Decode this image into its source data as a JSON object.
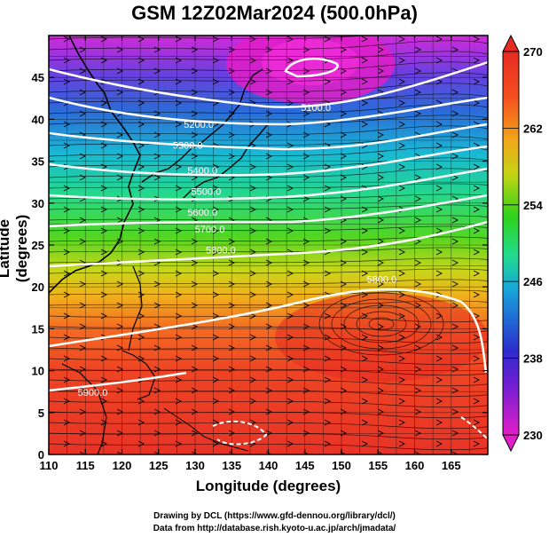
{
  "title": "GSM 12Z02Mar2024 (500.0hPa)",
  "xlabel": "Longitude (degrees)",
  "ylabel": "Latitude  (degrees)",
  "credit_line1": "Drawing by DCL (https://www.gfd-dennou.org/library/dcl/)",
  "credit_line2": "Data from http://database.rish.kyoto-u.ac.jp/arch/jmadata/",
  "map": {
    "lon_range": [
      110,
      170
    ],
    "lat_range": [
      0,
      50
    ],
    "lon_ticks": [
      110,
      115,
      120,
      125,
      130,
      135,
      140,
      145,
      150,
      155,
      160,
      165
    ],
    "lat_ticks": [
      0,
      5,
      10,
      15,
      20,
      25,
      30,
      35,
      40,
      45
    ],
    "field": "temperature (K) shaded, geopotential height contours, wind streamlines",
    "colorbar": {
      "min": 230,
      "max": 270,
      "tick_labels": [
        "270",
        "262",
        "254",
        "246",
        "238",
        "230"
      ],
      "colors": [
        "#e21ec8",
        "#3030c8",
        "#17a6dc",
        "#22dc8c",
        "#2fd21a",
        "#c4d414",
        "#f2a51a",
        "#f5501e",
        "#e62a23"
      ]
    },
    "contour_labels": [
      {
        "text": "5100.0",
        "lon": 146.5,
        "lat": 41.0
      },
      {
        "text": "5200.0",
        "lon": 130.5,
        "lat": 39.0
      },
      {
        "text": "5300.0",
        "lon": 129.0,
        "lat": 36.5
      },
      {
        "text": "5400.0",
        "lon": 131.0,
        "lat": 33.5
      },
      {
        "text": "5500.0",
        "lon": 131.5,
        "lat": 31.0
      },
      {
        "text": "5600.0",
        "lon": 131.0,
        "lat": 28.5
      },
      {
        "text": "5700.0",
        "lon": 132.0,
        "lat": 26.5
      },
      {
        "text": "5800.0",
        "lon": 133.5,
        "lat": 24.0
      },
      {
        "text": "5800.0",
        "lon": 155.5,
        "lat": 20.5
      },
      {
        "text": "5900.0",
        "lon": 116.0,
        "lat": 7.0
      }
    ]
  }
}
